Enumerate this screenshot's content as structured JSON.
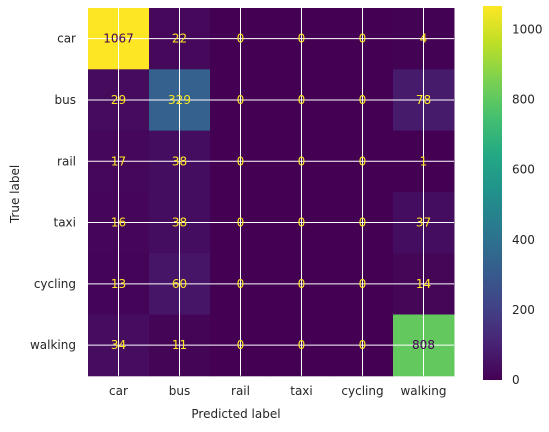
{
  "chart_data": {
    "type": "heatmap",
    "title": "",
    "xlabel": "Predicted label",
    "ylabel": "True label",
    "x_categories": [
      "car",
      "bus",
      "rail",
      "taxi",
      "cycling",
      "walking"
    ],
    "y_categories": [
      "car",
      "bus",
      "rail",
      "taxi",
      "cycling",
      "walking"
    ],
    "values": [
      [
        1067,
        22,
        0,
        0,
        0,
        4
      ],
      [
        29,
        329,
        0,
        0,
        0,
        78
      ],
      [
        17,
        38,
        0,
        0,
        0,
        1
      ],
      [
        16,
        38,
        0,
        0,
        0,
        37
      ],
      [
        13,
        60,
        0,
        0,
        0,
        14
      ],
      [
        34,
        11,
        0,
        0,
        0,
        808
      ]
    ],
    "colormap": "viridis",
    "color_range": [
      0,
      1067
    ],
    "colorbar_ticks": [
      0,
      200,
      400,
      600,
      800,
      1000
    ],
    "grid": true,
    "label_color_light": "#fde725",
    "label_color_dark": "#440154"
  }
}
